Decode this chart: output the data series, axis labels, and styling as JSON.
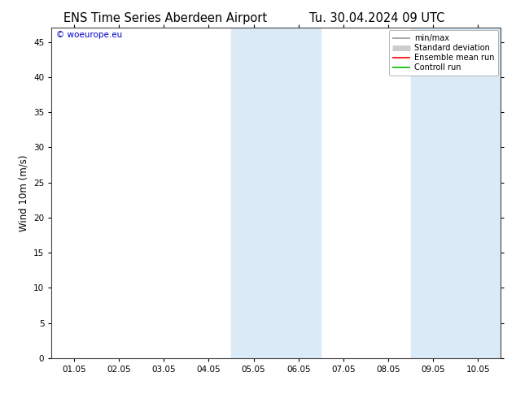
{
  "title_left": "ENS Time Series Aberdeen Airport",
  "title_right": "Tu. 30.04.2024 09 UTC",
  "ylabel": "Wind 10m (m/s)",
  "ylim": [
    0,
    47
  ],
  "yticks": [
    0,
    5,
    10,
    15,
    20,
    25,
    30,
    35,
    40,
    45
  ],
  "xtick_labels": [
    "01.05",
    "02.05",
    "03.05",
    "04.05",
    "05.05",
    "06.05",
    "07.05",
    "08.05",
    "09.05",
    "10.05"
  ],
  "xtick_positions": [
    0,
    1,
    2,
    3,
    4,
    5,
    6,
    7,
    8,
    9
  ],
  "xlim": [
    -0.5,
    9.5
  ],
  "shaded_bands": [
    {
      "xmin": 3.5,
      "xmax": 5.5,
      "color": "#daeaf6"
    },
    {
      "xmin": 7.5,
      "xmax": 9.5,
      "color": "#daeaf6"
    }
  ],
  "watermark": "© woeurope.eu",
  "watermark_color": "#0000cc",
  "background_color": "#ffffff",
  "legend_items": [
    {
      "label": "min/max",
      "color": "#999999",
      "lw": 1.2
    },
    {
      "label": "Standard deviation",
      "color": "#cccccc",
      "lw": 5
    },
    {
      "label": "Ensemble mean run",
      "color": "#ff0000",
      "lw": 1.2
    },
    {
      "label": "Controll run",
      "color": "#00bb00",
      "lw": 1.2
    }
  ],
  "spine_color": "#444444",
  "title_fontsize": 10.5,
  "tick_fontsize": 7.5,
  "ylabel_fontsize": 8.5
}
